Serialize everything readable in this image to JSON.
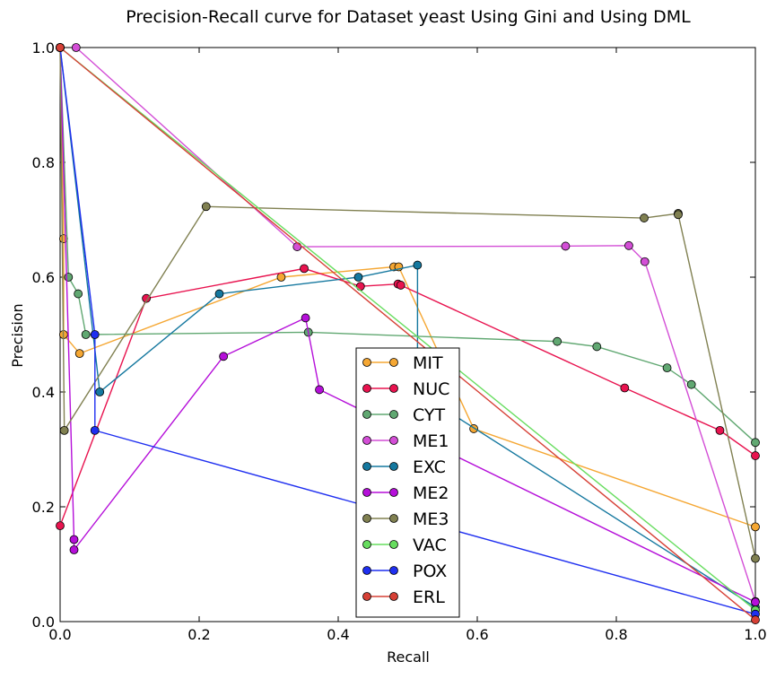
{
  "chart_data": {
    "type": "line",
    "title": "Precision-Recall curve for Dataset yeast Using Gini and Using DML",
    "xlabel": "Recall",
    "ylabel": "Precision",
    "xlim": [
      0.0,
      1.0
    ],
    "ylim": [
      0.0,
      1.0
    ],
    "x_ticks": [
      "0.0",
      "0.2",
      "0.4",
      "0.6",
      "0.8",
      "1.0"
    ],
    "y_ticks": [
      "0.0",
      "0.2",
      "0.4",
      "0.6",
      "0.8",
      "1.0"
    ],
    "grid": false,
    "legend_position": "lower-center",
    "series": [
      {
        "name": "MIT",
        "color": "#f5a733",
        "points": [
          [
            0.0,
            1.0
          ],
          [
            0.005,
            0.667
          ],
          [
            0.005,
            0.5
          ],
          [
            0.028,
            0.467
          ],
          [
            0.318,
            0.6
          ],
          [
            0.48,
            0.618
          ],
          [
            0.487,
            0.618
          ],
          [
            0.595,
            0.336
          ],
          [
            1.0,
            0.165
          ]
        ]
      },
      {
        "name": "NUC",
        "color": "#e8134f",
        "points": [
          [
            0.0,
            0.167
          ],
          [
            0.124,
            0.563
          ],
          [
            0.351,
            0.615
          ],
          [
            0.432,
            0.584
          ],
          [
            0.486,
            0.588
          ],
          [
            0.49,
            0.586
          ],
          [
            0.812,
            0.407
          ],
          [
            0.949,
            0.333
          ],
          [
            1.0,
            0.289
          ]
        ]
      },
      {
        "name": "CYT",
        "color": "#61a872",
        "points": [
          [
            0.0,
            1.0
          ],
          [
            0.012,
            0.6
          ],
          [
            0.026,
            0.571
          ],
          [
            0.037,
            0.5
          ],
          [
            0.357,
            0.504
          ],
          [
            0.715,
            0.488
          ],
          [
            0.772,
            0.479
          ],
          [
            0.873,
            0.442
          ],
          [
            0.908,
            0.413
          ],
          [
            1.0,
            0.312
          ]
        ]
      },
      {
        "name": "ME1",
        "color": "#d34ed6",
        "points": [
          [
            0.023,
            1.0
          ],
          [
            0.341,
            0.653
          ],
          [
            0.727,
            0.654
          ],
          [
            0.818,
            0.655
          ],
          [
            0.841,
            0.627
          ],
          [
            1.0,
            0.035
          ]
        ]
      },
      {
        "name": "EXC",
        "color": "#15789f",
        "points": [
          [
            0.0,
            1.0
          ],
          [
            0.057,
            0.4
          ],
          [
            0.229,
            0.571
          ],
          [
            0.429,
            0.6
          ],
          [
            0.514,
            0.621
          ],
          [
            0.514,
            0.4
          ],
          [
            1.0,
            0.025
          ]
        ]
      },
      {
        "name": "ME2",
        "color": "#b50fd9",
        "points": [
          [
            0.0,
            1.0
          ],
          [
            0.02,
            0.143
          ],
          [
            0.02,
            0.125
          ],
          [
            0.235,
            0.462
          ],
          [
            0.353,
            0.529
          ],
          [
            0.373,
            0.404
          ],
          [
            1.0,
            0.034
          ]
        ]
      },
      {
        "name": "ME3",
        "color": "#808051",
        "points": [
          [
            0.0,
            1.0
          ],
          [
            0.006,
            0.333
          ],
          [
            0.21,
            0.723
          ],
          [
            0.84,
            0.703
          ],
          [
            0.889,
            0.711
          ],
          [
            0.889,
            0.709
          ],
          [
            1.0,
            0.11
          ]
        ]
      },
      {
        "name": "VAC",
        "color": "#67dd5f",
        "points": [
          [
            0.0,
            1.0
          ],
          [
            1.0,
            0.02
          ]
        ]
      },
      {
        "name": "POX",
        "color": "#1f2ff0",
        "points": [
          [
            0.0,
            1.0
          ],
          [
            0.05,
            0.5
          ],
          [
            0.05,
            0.333
          ],
          [
            1.0,
            0.013
          ]
        ]
      },
      {
        "name": "ERL",
        "color": "#d64036",
        "points": [
          [
            0.0,
            1.0
          ],
          [
            1.0,
            0.003
          ]
        ]
      }
    ]
  }
}
